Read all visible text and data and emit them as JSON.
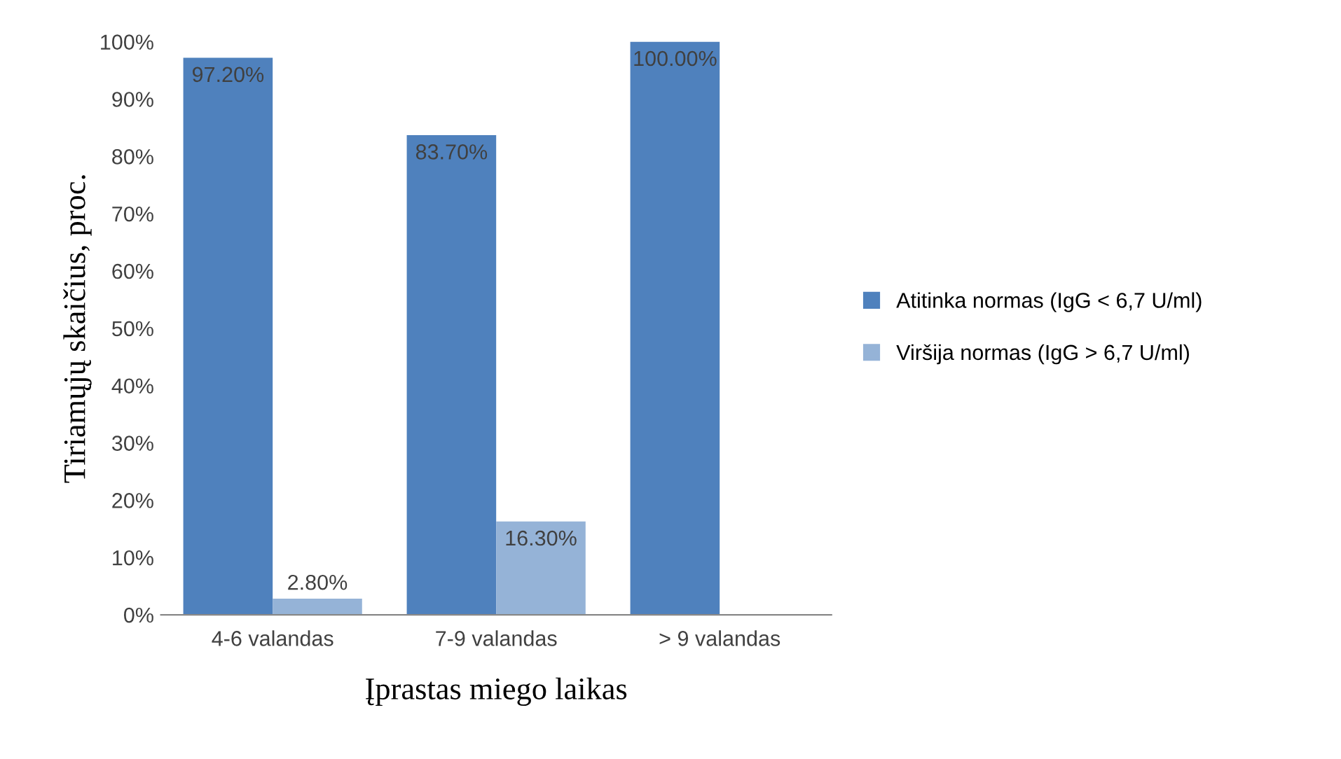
{
  "chart_data": {
    "type": "bar",
    "xlabel": "Įprastas miego laikas",
    "ylabel": "Tiriamųjų skaičius, proc.",
    "categories": [
      "4-6 valandas",
      "7-9 valandas",
      "> 9 valandas"
    ],
    "series": [
      {
        "name": "Atitinka normas (IgG < 6,7 U/ml)",
        "color": "#4f81bd",
        "values": [
          97.2,
          83.7,
          100
        ],
        "value_labels": [
          "97.20%",
          "83.70%",
          "100.00%"
        ]
      },
      {
        "name": "Viršija normas (IgG > 6,7 U/ml)",
        "color": "#95b3d7",
        "values": [
          2.8,
          16.3,
          null
        ],
        "value_labels": [
          "2.80%",
          "16.30%",
          null
        ]
      }
    ],
    "ylim": [
      0,
      100
    ],
    "yticks": [
      {
        "value": 0,
        "label": "0%"
      },
      {
        "value": 10,
        "label": "10%"
      },
      {
        "value": 20,
        "label": "20%"
      },
      {
        "value": 30,
        "label": "30%"
      },
      {
        "value": 40,
        "label": "40%"
      },
      {
        "value": 50,
        "label": "50%"
      },
      {
        "value": 60,
        "label": "60%"
      },
      {
        "value": 70,
        "label": "70%"
      },
      {
        "value": 80,
        "label": "80%"
      },
      {
        "value": 90,
        "label": "90%"
      },
      {
        "value": 100,
        "label": "100%"
      }
    ],
    "legend": "right",
    "grid": false
  }
}
